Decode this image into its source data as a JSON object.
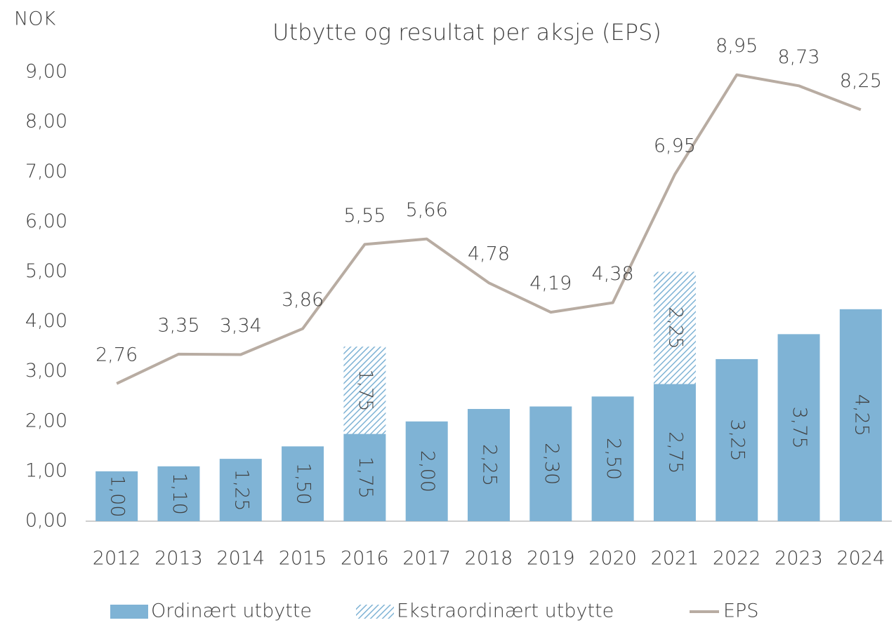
{
  "chart_data": {
    "type": "combo",
    "title": "Utbytte og resultat per aksje (EPS)",
    "y_label": "NOK",
    "categories": [
      "2012",
      "2013",
      "2014",
      "2015",
      "2016",
      "2017",
      "2018",
      "2019",
      "2020",
      "2021",
      "2022",
      "2023",
      "2024"
    ],
    "stacked": true,
    "series": [
      {
        "name": "Ordinært utbytte",
        "kind": "bar",
        "color": "#7fb3d5",
        "pattern": "solid",
        "values": [
          1.0,
          1.1,
          1.25,
          1.5,
          1.75,
          2.0,
          2.25,
          2.3,
          2.5,
          2.75,
          3.25,
          3.75,
          4.25
        ],
        "value_labels": [
          "1,00",
          "1,10",
          "1,25",
          "1,50",
          "1,75",
          "2,00",
          "2,25",
          "2,30",
          "2,50",
          "2,75",
          "3,25",
          "3,75",
          "4,25"
        ]
      },
      {
        "name": "Ekstraordinært utbytte",
        "kind": "bar",
        "color": "#7fb3d5",
        "pattern": "hatch",
        "values": [
          null,
          null,
          null,
          null,
          1.75,
          null,
          null,
          null,
          null,
          2.25,
          null,
          null,
          null
        ],
        "value_labels": [
          null,
          null,
          null,
          null,
          "1,75",
          null,
          null,
          null,
          null,
          "2,25",
          null,
          null,
          null
        ]
      },
      {
        "name": "EPS",
        "kind": "line",
        "color": "#b8aca2",
        "values": [
          2.76,
          3.35,
          3.34,
          3.86,
          5.55,
          5.66,
          4.78,
          4.19,
          4.38,
          6.95,
          8.95,
          8.73,
          8.25
        ],
        "value_labels": [
          "2,76",
          "3,35",
          "3,34",
          "3,86",
          "5,55",
          "5,66",
          "4,78",
          "4,19",
          "4,38",
          "6,95",
          "8,95",
          "8,73",
          "8,25"
        ]
      }
    ],
    "ylim": [
      0,
      9.5
    ],
    "yticks": [
      {
        "value": 0,
        "label": "0,00"
      },
      {
        "value": 1,
        "label": "1,00"
      },
      {
        "value": 2,
        "label": "2,00"
      },
      {
        "value": 3,
        "label": "3,00"
      },
      {
        "value": 4,
        "label": "4,00"
      },
      {
        "value": 5,
        "label": "5,00"
      },
      {
        "value": 6,
        "label": "6,00"
      },
      {
        "value": 7,
        "label": "7,00"
      },
      {
        "value": 8,
        "label": "8,00"
      },
      {
        "value": 9,
        "label": "9,00"
      }
    ],
    "grid": false,
    "legend": "bottom"
  }
}
